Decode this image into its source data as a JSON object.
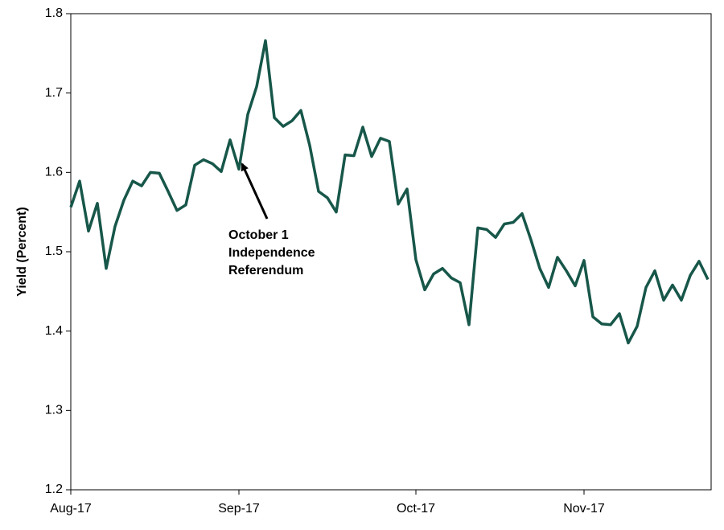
{
  "chart_data": {
    "type": "line",
    "y_label": "Yield (Percent)",
    "annotation": [
      "October 1",
      "Independence",
      "Referendum"
    ],
    "categories": [
      "Aug-17",
      null,
      null,
      null,
      null,
      null,
      null,
      null,
      null,
      null,
      null,
      null,
      null,
      null,
      null,
      null,
      null,
      null,
      null,
      "Sep-17",
      null,
      null,
      null,
      null,
      null,
      null,
      null,
      null,
      null,
      null,
      null,
      null,
      null,
      null,
      null,
      null,
      null,
      null,
      null,
      "Oct-17",
      null,
      null,
      null,
      null,
      null,
      null,
      null,
      null,
      null,
      null,
      null,
      null,
      null,
      null,
      null,
      null,
      null,
      null,
      "Nov-17",
      null,
      null,
      null,
      null,
      null,
      null,
      null,
      null,
      null,
      null,
      null,
      null,
      null,
      null
    ],
    "values": [
      1.556,
      1.589,
      1.526,
      1.561,
      1.479,
      1.532,
      1.565,
      1.589,
      1.583,
      1.6,
      1.599,
      1.576,
      1.552,
      1.559,
      1.609,
      1.616,
      1.611,
      1.601,
      1.641,
      1.604,
      1.673,
      1.708,
      1.766,
      1.669,
      1.658,
      1.665,
      1.678,
      1.634,
      1.576,
      1.568,
      1.55,
      1.622,
      1.621,
      1.657,
      1.62,
      1.643,
      1.639,
      1.56,
      1.579,
      1.49,
      1.452,
      1.472,
      1.479,
      1.467,
      1.461,
      1.408,
      1.53,
      1.528,
      1.518,
      1.535,
      1.537,
      1.548,
      1.515,
      1.479,
      1.455,
      1.493,
      1.476,
      1.457,
      1.489,
      1.418,
      1.409,
      1.408,
      1.422,
      1.385,
      1.406,
      1.455,
      1.476,
      1.439,
      1.458,
      1.439,
      1.47,
      1.488,
      1.465
    ],
    "color": "#17574a",
    "ylim": [
      1.2,
      1.8
    ],
    "yticks": [
      1.2,
      1.3,
      1.4,
      1.5,
      1.6,
      1.7,
      1.8
    ],
    "grid": false
  }
}
